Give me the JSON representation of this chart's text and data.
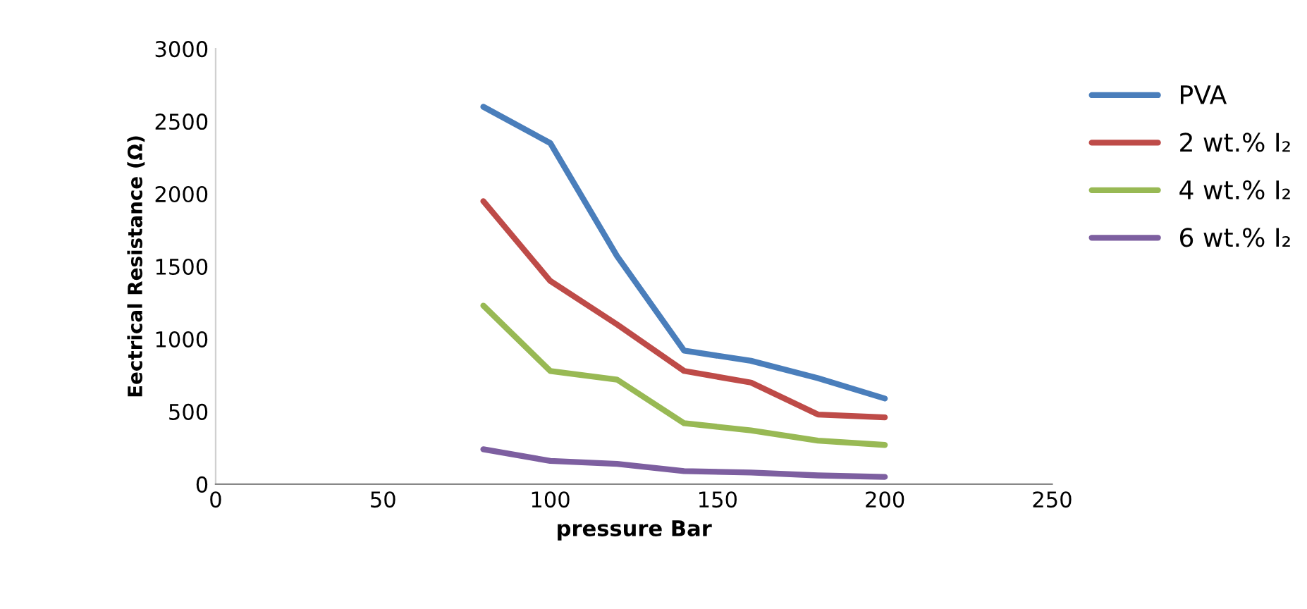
{
  "chart_data": {
    "type": "line",
    "xlabel": "pressure Bar",
    "ylabel": "Eectrical Resistance (Ω)",
    "x": [
      80,
      100,
      120,
      140,
      160,
      180,
      200
    ],
    "series": [
      {
        "name": "PVA",
        "color": "#4a7ebb",
        "values": [
          2600,
          2350,
          1570,
          920,
          850,
          730,
          590
        ]
      },
      {
        "name": "2 wt.% I₂",
        "color": "#be4b48",
        "values": [
          1950,
          1400,
          1100,
          780,
          700,
          480,
          460
        ]
      },
      {
        "name": "4 wt.% I₂",
        "color": "#98b954",
        "values": [
          1230,
          780,
          720,
          420,
          370,
          300,
          270
        ]
      },
      {
        "name": "6 wt.% I₂",
        "color": "#7d5fa0",
        "values": [
          240,
          160,
          140,
          90,
          80,
          60,
          50
        ]
      }
    ],
    "xlim": [
      0,
      250
    ],
    "xticks": [
      0,
      50,
      100,
      150,
      200,
      250
    ],
    "ylim": [
      0,
      3000
    ],
    "yticks": [
      0,
      500,
      1000,
      1500,
      2000,
      2500,
      3000
    ],
    "legend": "right",
    "grid": false,
    "marker": "none",
    "line_style": "solid"
  }
}
